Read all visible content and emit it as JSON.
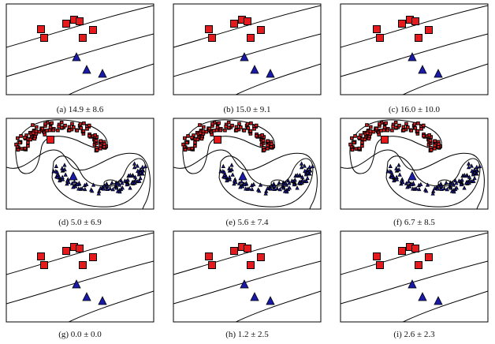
{
  "panels": [
    {
      "caption": "(a)  14.9 ± 8.6"
    },
    {
      "caption": "(b)  15.0 ± 9.1"
    },
    {
      "caption": "(c)  16.0 ± 10.0"
    },
    {
      "caption": "(d)  5.0 ± 6.9"
    },
    {
      "caption": "(e)  5.6 ± 7.4"
    },
    {
      "caption": "(f)  6.7 ± 8.5"
    },
    {
      "caption": "(g)  0.0 ± 0.0"
    },
    {
      "caption": "(h)  1.2 ± 2.5"
    },
    {
      "caption": "(i)  2.6 ± 2.3"
    }
  ]
}
